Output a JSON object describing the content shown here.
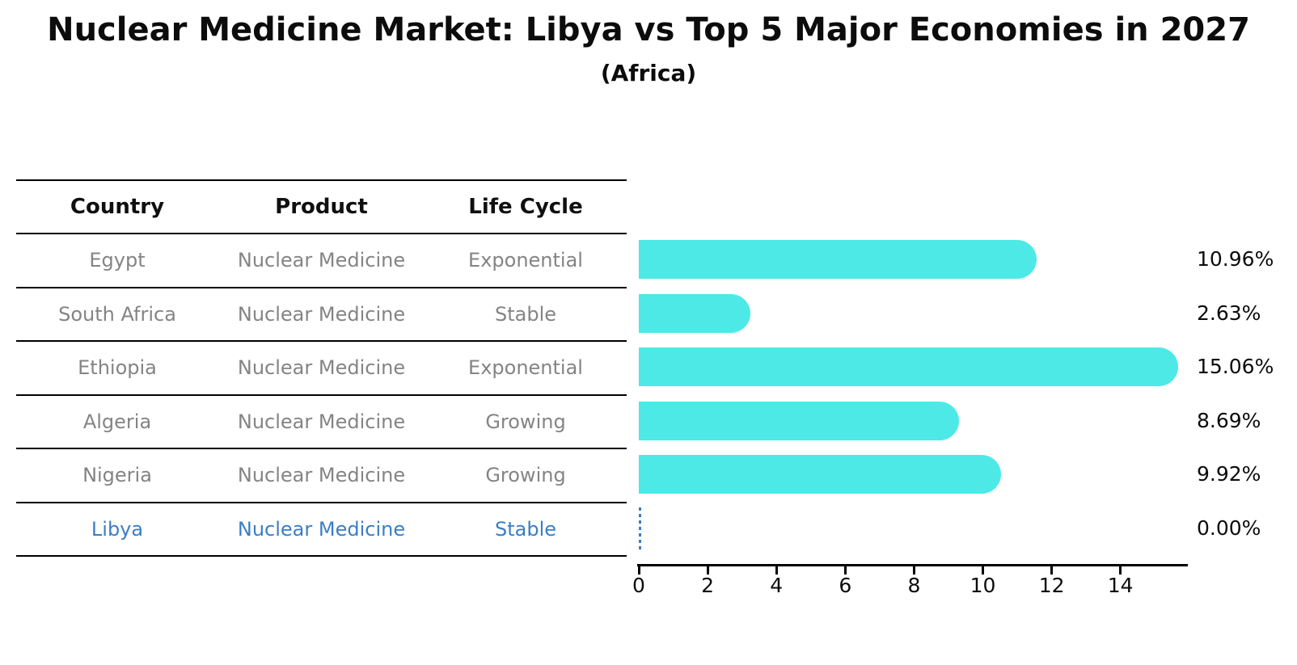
{
  "chart_data": {
    "type": "bar",
    "orientation": "horizontal",
    "title": "Nuclear Medicine Market: Libya vs Top 5 Major Economies in 2027",
    "subtitle": "(Africa)",
    "categories": [
      "Egypt",
      "South Africa",
      "Ethiopia",
      "Algeria",
      "Nigeria",
      "Libya"
    ],
    "values": [
      10.96,
      2.63,
      15.06,
      8.69,
      9.92,
      0
    ],
    "value_labels": [
      "10.96%",
      "2.63%",
      "15.06%",
      "8.69%",
      "9.92%",
      "0.00%"
    ],
    "x_ticks": [
      0,
      2,
      4,
      6,
      8,
      10,
      12,
      14
    ],
    "xlim": [
      0,
      15.9
    ],
    "grid": false,
    "legend": "none",
    "bar_color": "#4de9e6",
    "highlight_color": "#3b7ec4",
    "text_color": "#848484",
    "axis_color": "#000000"
  },
  "table": {
    "headers": [
      "Country",
      "Product",
      "Life Cycle"
    ],
    "rows": [
      {
        "country": "Egypt",
        "product": "Nuclear Medicine",
        "life_cycle": "Exponential"
      },
      {
        "country": "South Africa",
        "product": "Nuclear Medicine",
        "life_cycle": "Stable"
      },
      {
        "country": "Ethiopia",
        "product": "Nuclear Medicine",
        "life_cycle": "Exponential"
      },
      {
        "country": "Algeria",
        "product": "Nuclear Medicine",
        "life_cycle": "Growing"
      },
      {
        "country": "Nigeria",
        "product": "Nuclear Medicine",
        "life_cycle": "Growing"
      },
      {
        "country": "Libya",
        "product": "Nuclear Medicine",
        "life_cycle": "Stable"
      }
    ],
    "highlighted_row": "Libya"
  }
}
